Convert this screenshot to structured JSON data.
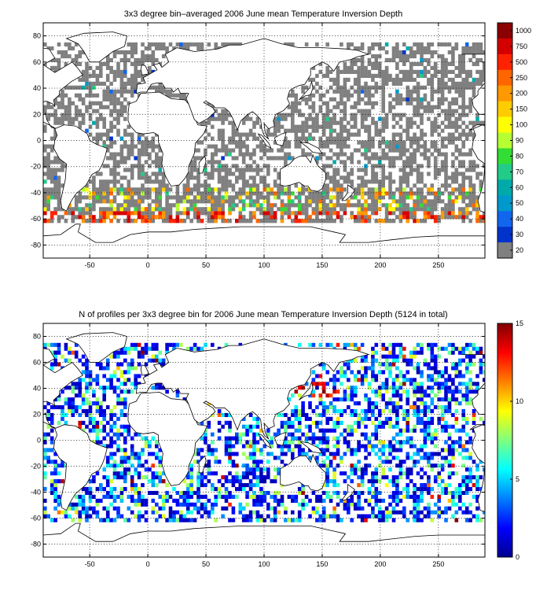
{
  "panel_top": {
    "title": "3x3 degree bin–averaged 2006 June mean Temperature Inversion Depth",
    "x_ticks": [
      "-50",
      "0",
      "50",
      "100",
      "150",
      "200",
      "250"
    ],
    "y_ticks": [
      "80",
      "60",
      "40",
      "20",
      "0",
      "-20",
      "-40",
      "-60",
      "-80"
    ],
    "colorbar": {
      "labels": [
        "1000",
        "750",
        "500",
        "250",
        "200",
        "150",
        "100",
        "90",
        "80",
        "70",
        "60",
        "50",
        "40",
        "30",
        "20"
      ],
      "colors": [
        "#8b0000",
        "#d40000",
        "#ff2200",
        "#ff6600",
        "#ff9900",
        "#ffcc00",
        "#ffff00",
        "#b5ff33",
        "#33dd33",
        "#22cc88",
        "#00aaaa",
        "#0099cc",
        "#1166ee",
        "#0033cc",
        "#808080"
      ]
    }
  },
  "panel_bottom": {
    "title": "N of profiles per 3x3 degree bin for 2006 June mean Temperature Inversion Depth  (5124 in total)",
    "x_ticks": [
      "-50",
      "0",
      "50",
      "100",
      "150",
      "200",
      "250"
    ],
    "y_ticks": [
      "80",
      "60",
      "40",
      "20",
      "0",
      "-20",
      "-40",
      "-60",
      "-80"
    ],
    "colorbar": {
      "ticks": [
        "15",
        "10",
        "5",
        "0"
      ],
      "range": [
        0,
        15
      ]
    }
  },
  "chart_data": [
    {
      "type": "heatmap",
      "title": "3x3 degree bin–averaged 2006 June mean Temperature Inversion Depth",
      "xlim": [
        -90,
        290
      ],
      "ylim": [
        -90,
        90
      ],
      "colorbar_levels": [
        20,
        30,
        40,
        50,
        60,
        70,
        80,
        90,
        100,
        150,
        200,
        250,
        500,
        750,
        1000
      ],
      "grid": true
    },
    {
      "type": "heatmap",
      "title": "N of profiles per 3x3 degree bin for 2006 June mean Temperature Inversion Depth  (5124 in total)",
      "xlim": [
        -90,
        290
      ],
      "ylim": [
        -90,
        90
      ],
      "colorbar_range": [
        0,
        15
      ],
      "total_profiles": 5124,
      "grid": true
    }
  ]
}
